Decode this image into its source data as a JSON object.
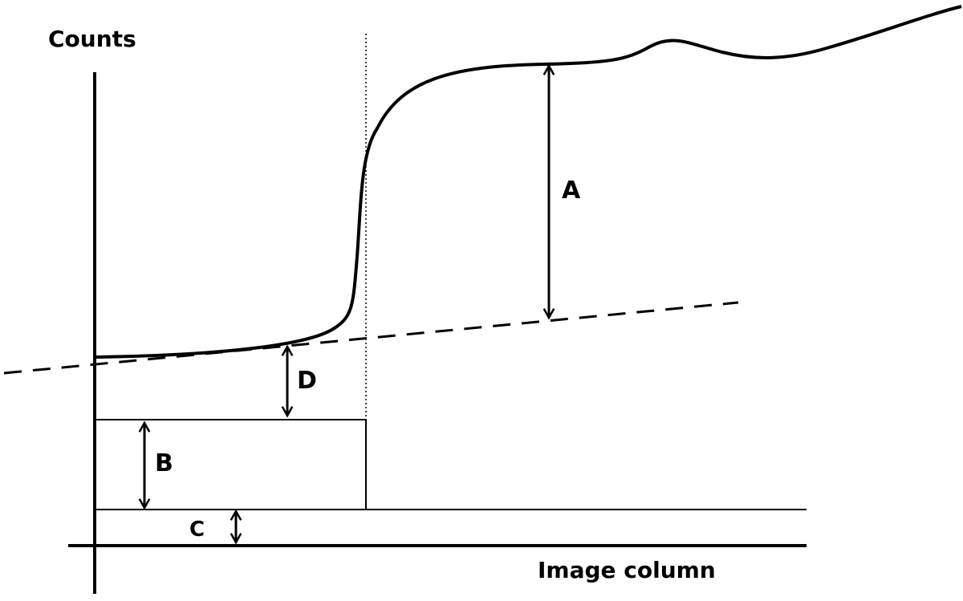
{
  "axes": {
    "y_label": "Counts",
    "x_label": "Image column"
  },
  "annotations": {
    "a": "A",
    "b": "B",
    "c": "C",
    "d": "D"
  }
}
